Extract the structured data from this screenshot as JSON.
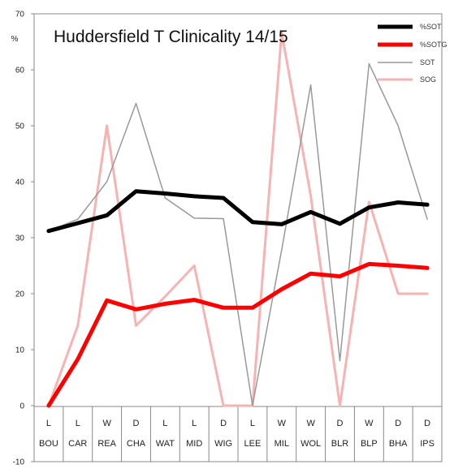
{
  "chart_data": {
    "type": "line",
    "title": "Huddersfield T Clinicality 14/15",
    "ylabel": "%",
    "ylim": [
      -10,
      70
    ],
    "yticks": [
      -10,
      0,
      10,
      20,
      30,
      40,
      50,
      60,
      70
    ],
    "grid": false,
    "legend_position": "top-right",
    "categories": [
      "BOU",
      "CAR",
      "REA",
      "CHA",
      "WAT",
      "MID",
      "WIG",
      "LEE",
      "MIL",
      "WOL",
      "BLR",
      "BLP",
      "BHA",
      "IPS"
    ],
    "results": [
      "L",
      "L",
      "W",
      "D",
      "L",
      "L",
      "D",
      "L",
      "W",
      "W",
      "D",
      "W",
      "D",
      "D"
    ],
    "series": [
      {
        "name": "%SOT",
        "color": "#000000",
        "width": 5,
        "values": [
          31.2,
          32.6,
          34.0,
          38.3,
          37.9,
          37.4,
          37.1,
          32.8,
          32.4,
          34.6,
          32.5,
          35.4,
          36.3,
          35.9
        ]
      },
      {
        "name": "%SOTG",
        "color": "#ff0000",
        "width": 5,
        "values": [
          0.0,
          8.3,
          18.8,
          17.2,
          18.2,
          18.9,
          17.5,
          17.5,
          20.8,
          23.6,
          23.1,
          25.3,
          25.0,
          24.6
        ]
      },
      {
        "name": "SOT",
        "color": "#999999",
        "width": 1.5,
        "values": [
          31.2,
          33.3,
          40.0,
          54.0,
          37.1,
          33.5,
          33.4,
          0.0,
          27.8,
          57.3,
          8.0,
          61.1,
          50.0,
          33.3
        ]
      },
      {
        "name": "SOG",
        "color": "#f7b3b3",
        "width": 3,
        "values": [
          0.0,
          14.3,
          50.0,
          14.3,
          19.5,
          25.0,
          0.0,
          0.0,
          66.7,
          37.5,
          0.0,
          36.4,
          20.0,
          20.0
        ]
      }
    ]
  }
}
